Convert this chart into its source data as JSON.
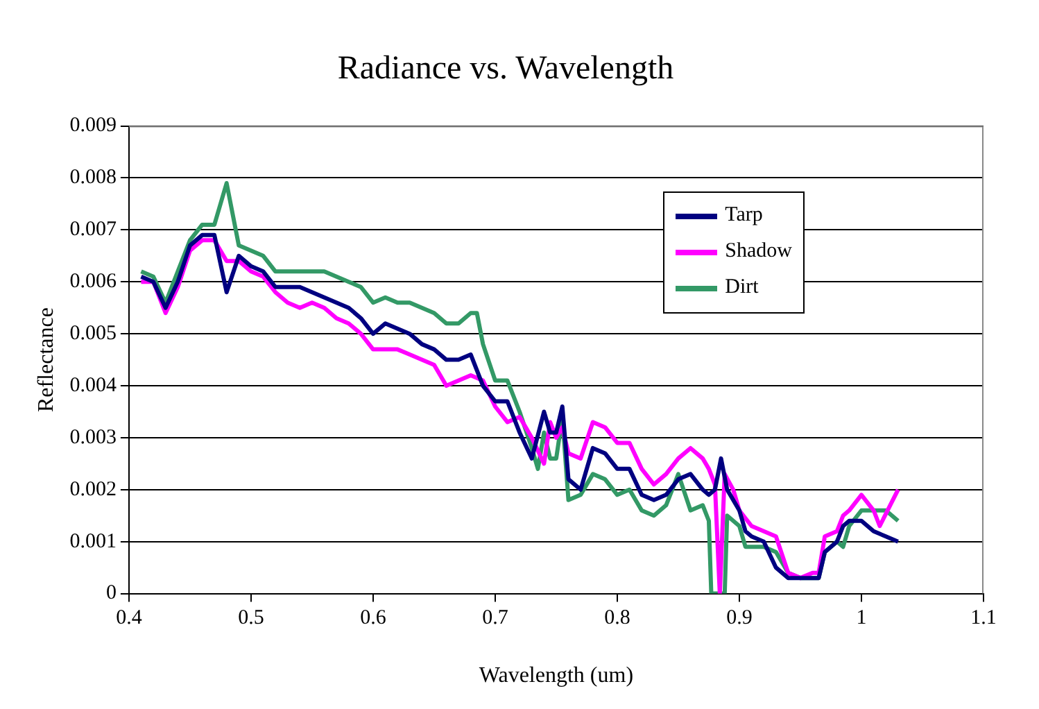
{
  "chart_data": {
    "type": "line",
    "title": "Radiance vs. Wavelength",
    "xlabel": "Wavelength (um)",
    "ylabel": "Reflectance",
    "xlim": [
      0.4,
      1.1
    ],
    "xticks": [
      0.4,
      0.5,
      0.6,
      0.7,
      0.8,
      0.9,
      1,
      1.1
    ],
    "ylim": [
      0,
      0.009
    ],
    "yticks": [
      0,
      0.001,
      0.002,
      0.003,
      0.004,
      0.005,
      0.006,
      0.007,
      0.008,
      0.009
    ],
    "grid": "y",
    "legend": "top right",
    "marker": "none",
    "line_style": "solid",
    "series": [
      {
        "name": "Tarp",
        "color": "#000080",
        "x": [
          0.41,
          0.42,
          0.43,
          0.44,
          0.45,
          0.46,
          0.47,
          0.48,
          0.49,
          0.5,
          0.51,
          0.52,
          0.53,
          0.54,
          0.55,
          0.56,
          0.57,
          0.58,
          0.59,
          0.6,
          0.61,
          0.62,
          0.63,
          0.64,
          0.65,
          0.66,
          0.67,
          0.68,
          0.69,
          0.7,
          0.71,
          0.72,
          0.73,
          0.74,
          0.745,
          0.75,
          0.755,
          0.76,
          0.77,
          0.78,
          0.79,
          0.8,
          0.81,
          0.82,
          0.83,
          0.84,
          0.85,
          0.86,
          0.87,
          0.875,
          0.88,
          0.885,
          0.89,
          0.9,
          0.905,
          0.91,
          0.92,
          0.93,
          0.94,
          0.95,
          0.96,
          0.965,
          0.97,
          0.98,
          0.985,
          0.99,
          1,
          1.01,
          1.02,
          1.03
        ],
        "values": [
          0.0061,
          0.006,
          0.0055,
          0.006,
          0.0067,
          0.0069,
          0.0069,
          0.0058,
          0.0065,
          0.0063,
          0.0062,
          0.0059,
          0.0059,
          0.0059,
          0.0058,
          0.0057,
          0.0056,
          0.0055,
          0.0053,
          0.005,
          0.0052,
          0.0051,
          0.005,
          0.0048,
          0.0047,
          0.0045,
          0.0045,
          0.0046,
          0.004,
          0.0037,
          0.0037,
          0.0031,
          0.0026,
          0.0035,
          0.0031,
          0.0031,
          0.0036,
          0.0022,
          0.002,
          0.0028,
          0.0027,
          0.0024,
          0.0024,
          0.0019,
          0.0018,
          0.0019,
          0.0022,
          0.0023,
          0.002,
          0.0019,
          0.002,
          0.0026,
          0.002,
          0.0016,
          0.0012,
          0.0011,
          0.001,
          0.0005,
          0.0003,
          0.0003,
          0.0003,
          0.0003,
          0.0008,
          0.001,
          0.0013,
          0.0014,
          0.0014,
          0.0012,
          0.0011,
          0.001
        ]
      },
      {
        "name": "Shadow",
        "color": "#ff00ff",
        "x": [
          0.41,
          0.42,
          0.43,
          0.44,
          0.45,
          0.46,
          0.47,
          0.48,
          0.49,
          0.5,
          0.51,
          0.52,
          0.53,
          0.54,
          0.55,
          0.56,
          0.57,
          0.58,
          0.59,
          0.6,
          0.61,
          0.62,
          0.63,
          0.64,
          0.65,
          0.66,
          0.67,
          0.68,
          0.69,
          0.7,
          0.71,
          0.72,
          0.73,
          0.74,
          0.745,
          0.75,
          0.755,
          0.76,
          0.77,
          0.78,
          0.79,
          0.8,
          0.81,
          0.82,
          0.83,
          0.84,
          0.85,
          0.86,
          0.87,
          0.875,
          0.88,
          0.884,
          0.888,
          0.895,
          0.9,
          0.91,
          0.92,
          0.93,
          0.94,
          0.95,
          0.96,
          0.965,
          0.97,
          0.98,
          0.985,
          0.99,
          1,
          1.01,
          1.015,
          1.03
        ],
        "values": [
          0.006,
          0.006,
          0.0054,
          0.0059,
          0.0066,
          0.0068,
          0.0068,
          0.0064,
          0.0064,
          0.0062,
          0.0061,
          0.0058,
          0.0056,
          0.0055,
          0.0056,
          0.0055,
          0.0053,
          0.0052,
          0.005,
          0.0047,
          0.0047,
          0.0047,
          0.0046,
          0.0045,
          0.0044,
          0.004,
          0.0041,
          0.0042,
          0.0041,
          0.0036,
          0.0033,
          0.0034,
          0.003,
          0.0025,
          0.0033,
          0.003,
          0.0032,
          0.0027,
          0.0026,
          0.0033,
          0.0032,
          0.0029,
          0.0029,
          0.0024,
          0.0021,
          0.0023,
          0.0026,
          0.0028,
          0.0026,
          0.0024,
          0.0021,
          0,
          0.0023,
          0.002,
          0.0016,
          0.0013,
          0.0012,
          0.0011,
          0.0004,
          0.0003,
          0.0004,
          0.0004,
          0.0011,
          0.0012,
          0.0015,
          0.0016,
          0.0019,
          0.0016,
          0.0013,
          0.002
        ]
      },
      {
        "name": "Dirt",
        "color": "#339966",
        "x": [
          0.41,
          0.42,
          0.43,
          0.44,
          0.45,
          0.46,
          0.47,
          0.48,
          0.49,
          0.5,
          0.51,
          0.52,
          0.53,
          0.54,
          0.55,
          0.56,
          0.57,
          0.58,
          0.59,
          0.6,
          0.61,
          0.62,
          0.63,
          0.64,
          0.65,
          0.66,
          0.67,
          0.68,
          0.685,
          0.69,
          0.7,
          0.71,
          0.72,
          0.73,
          0.735,
          0.74,
          0.745,
          0.75,
          0.755,
          0.76,
          0.77,
          0.78,
          0.79,
          0.8,
          0.81,
          0.82,
          0.83,
          0.84,
          0.85,
          0.86,
          0.87,
          0.875,
          0.877,
          0.888,
          0.89,
          0.9,
          0.905,
          0.91,
          0.92,
          0.93,
          0.94,
          0.95,
          0.96,
          0.965,
          0.97,
          0.98,
          0.985,
          0.99,
          1,
          1.02,
          1.03
        ],
        "values": [
          0.0062,
          0.0061,
          0.0056,
          0.0062,
          0.0068,
          0.0071,
          0.0071,
          0.0079,
          0.0067,
          0.0066,
          0.0065,
          0.0062,
          0.0062,
          0.0062,
          0.0062,
          0.0062,
          0.0061,
          0.006,
          0.0059,
          0.0056,
          0.0057,
          0.0056,
          0.0056,
          0.0055,
          0.0054,
          0.0052,
          0.0052,
          0.0054,
          0.0054,
          0.0048,
          0.0041,
          0.0041,
          0.0035,
          0.0028,
          0.0024,
          0.0031,
          0.0026,
          0.0026,
          0.0034,
          0.0018,
          0.0019,
          0.0023,
          0.0022,
          0.0019,
          0.002,
          0.0016,
          0.0015,
          0.0017,
          0.0023,
          0.0016,
          0.0017,
          0.0014,
          0,
          0,
          0.0015,
          0.0013,
          0.0009,
          0.0009,
          0.0009,
          0.0008,
          0.0004,
          0.0003,
          0.0003,
          0.0003,
          0.0008,
          0.001,
          0.0009,
          0.0013,
          0.0016,
          0.0016,
          0.0014
        ]
      }
    ]
  }
}
